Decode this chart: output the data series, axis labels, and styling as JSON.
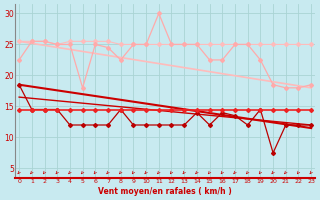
{
  "bg_color": "#c8eaf0",
  "grid_color": "#aad4d4",
  "xlabel": "Vent moyen/en rafales ( km/h )",
  "xlabel_color": "#cc0000",
  "ylabel_ticks": [
    5,
    10,
    15,
    20,
    25,
    30
  ],
  "xticks": [
    0,
    1,
    2,
    3,
    4,
    5,
    6,
    7,
    8,
    9,
    10,
    11,
    12,
    13,
    14,
    15,
    16,
    17,
    18,
    19,
    20,
    21,
    22,
    23
  ],
  "xlim": [
    -0.3,
    23.3
  ],
  "ylim": [
    3.5,
    31.5
  ],
  "tick_color": "#cc0000",
  "line_light_pink": {
    "x": [
      0,
      1,
      2,
      3,
      4,
      5,
      6,
      7,
      8,
      9,
      10,
      11,
      12,
      13,
      14,
      15,
      16,
      17,
      18,
      19,
      20,
      21,
      22,
      23
    ],
    "y": [
      22.5,
      25.5,
      25.5,
      25.0,
      25.0,
      18.0,
      25.0,
      24.5,
      22.5,
      25.0,
      25.0,
      30.0,
      25.0,
      25.0,
      25.0,
      22.5,
      22.5,
      25.0,
      25.0,
      22.5,
      18.5,
      18.0,
      18.0,
      18.5
    ],
    "color": "#ffaaaa",
    "lw": 0.9,
    "marker": "D",
    "ms": 2.0
  },
  "line_pink_upper": {
    "x": [
      0,
      1,
      2,
      3,
      4,
      5,
      6,
      7,
      8,
      9,
      10,
      11,
      12,
      13,
      14,
      15,
      16,
      17,
      18,
      19,
      20,
      21,
      22,
      23
    ],
    "y": [
      25.5,
      25.5,
      25.5,
      25.0,
      25.5,
      25.5,
      25.5,
      25.5,
      25.0,
      25.0,
      25.0,
      25.0,
      25.0,
      25.0,
      25.0,
      25.0,
      25.0,
      25.0,
      25.0,
      25.0,
      25.0,
      25.0,
      25.0,
      25.0
    ],
    "color": "#ffbbbb",
    "lw": 0.8,
    "marker": "D",
    "ms": 2.0
  },
  "line_pink_smooth": {
    "x": [
      0,
      23
    ],
    "y": [
      25.5,
      18.0
    ],
    "color": "#ffbbbb",
    "lw": 1.2,
    "marker": null
  },
  "line_red_flat": {
    "x": [
      0,
      1,
      2,
      3,
      4,
      5,
      6,
      7,
      8,
      9,
      10,
      11,
      12,
      13,
      14,
      15,
      16,
      17,
      18,
      19,
      20,
      21,
      22,
      23
    ],
    "y": [
      14.5,
      14.5,
      14.5,
      14.5,
      14.5,
      14.5,
      14.5,
      14.5,
      14.5,
      14.5,
      14.5,
      14.5,
      14.5,
      14.5,
      14.5,
      14.5,
      14.5,
      14.5,
      14.5,
      14.5,
      14.5,
      14.5,
      14.5,
      14.5
    ],
    "color": "#ee2222",
    "lw": 1.2,
    "marker": "D",
    "ms": 2.0
  },
  "line_red_decline": {
    "x": [
      0,
      23
    ],
    "y": [
      18.5,
      11.5
    ],
    "color": "#cc0000",
    "lw": 1.5,
    "marker": null
  },
  "line_dark_red": {
    "x": [
      0,
      1,
      2,
      3,
      4,
      5,
      6,
      7,
      8,
      9,
      10,
      11,
      12,
      13,
      14,
      15,
      16,
      17,
      18,
      19,
      20,
      21,
      22,
      23
    ],
    "y": [
      18.5,
      14.5,
      14.5,
      14.5,
      12.0,
      12.0,
      12.0,
      12.0,
      14.5,
      12.0,
      12.0,
      12.0,
      12.0,
      12.0,
      14.0,
      12.0,
      14.0,
      13.5,
      12.0,
      14.5,
      7.5,
      12.0,
      12.0,
      12.0
    ],
    "color": "#bb0000",
    "lw": 0.9,
    "marker": "D",
    "ms": 2.0
  },
  "line_red_decline2": {
    "x": [
      0,
      23
    ],
    "y": [
      16.5,
      12.0
    ],
    "color": "#cc0000",
    "lw": 1.0,
    "marker": null
  }
}
